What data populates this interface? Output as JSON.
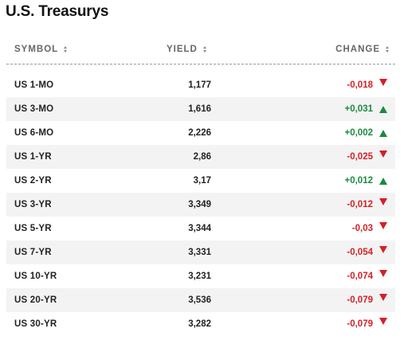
{
  "title": "U.S. Treasurys",
  "columns": {
    "symbol": "SYMBOL",
    "yield": "YIELD",
    "change": "CHANGE"
  },
  "colors": {
    "negative": "#d61f26",
    "positive": "#1b8a3e",
    "row_alt": "#f3f3f3"
  },
  "rows": [
    {
      "symbol": "US 1-MO",
      "yield": "1,177",
      "change": "-0,018",
      "direction": "down"
    },
    {
      "symbol": "US 3-MO",
      "yield": "1,616",
      "change": "+0,031",
      "direction": "up"
    },
    {
      "symbol": "US 6-MO",
      "yield": "2,226",
      "change": "+0,002",
      "direction": "up"
    },
    {
      "symbol": "US 1-YR",
      "yield": "2,86",
      "change": "-0,025",
      "direction": "down"
    },
    {
      "symbol": "US 2-YR",
      "yield": "3,17",
      "change": "+0,012",
      "direction": "up"
    },
    {
      "symbol": "US 3-YR",
      "yield": "3,349",
      "change": "-0,012",
      "direction": "down"
    },
    {
      "symbol": "US 5-YR",
      "yield": "3,344",
      "change": "-0,03",
      "direction": "down"
    },
    {
      "symbol": "US 7-YR",
      "yield": "3,331",
      "change": "-0,054",
      "direction": "down"
    },
    {
      "symbol": "US 10-YR",
      "yield": "3,231",
      "change": "-0,074",
      "direction": "down"
    },
    {
      "symbol": "US 20-YR",
      "yield": "3,536",
      "change": "-0,079",
      "direction": "down"
    },
    {
      "symbol": "US 30-YR",
      "yield": "3,282",
      "change": "-0,079",
      "direction": "down"
    }
  ]
}
